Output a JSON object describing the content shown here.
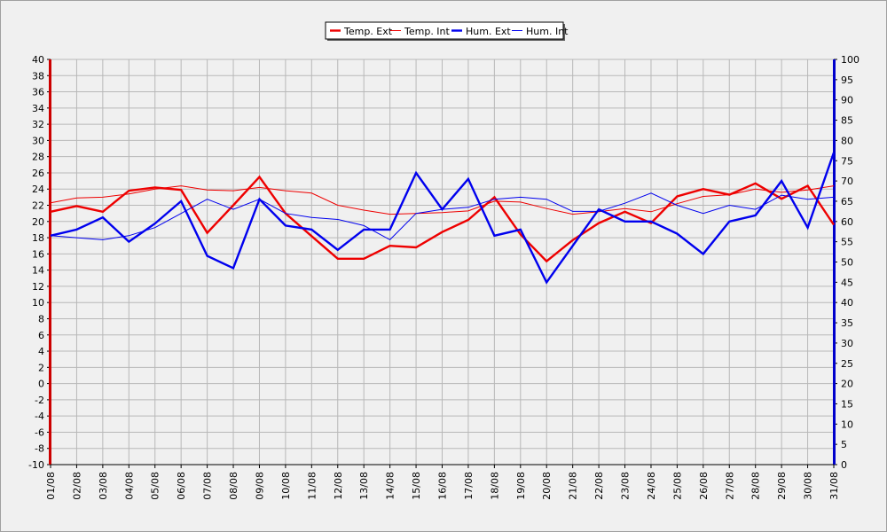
{
  "chart_data": {
    "type": "line",
    "title": "",
    "x": [
      "01/08",
      "02/08",
      "03/08",
      "04/08",
      "05/08",
      "06/08",
      "07/08",
      "08/08",
      "09/08",
      "10/08",
      "11/08",
      "12/08",
      "13/08",
      "14/08",
      "15/08",
      "16/08",
      "17/08",
      "18/08",
      "19/08",
      "20/08",
      "21/08",
      "22/08",
      "23/08",
      "24/08",
      "25/08",
      "26/08",
      "27/08",
      "28/08",
      "29/08",
      "30/08",
      "31/08"
    ],
    "y_left": {
      "range": [
        -10,
        40
      ],
      "step": 2,
      "color": "#cc0000"
    },
    "y_right": {
      "range": [
        0,
        100
      ],
      "step": 5,
      "color": "#0000cc"
    },
    "grid": true,
    "legend_position": "top-center",
    "series": [
      {
        "name": "Temp. Ext",
        "axis": "left",
        "color": "#ee0000",
        "width": 2.4,
        "values": [
          21.2,
          21.9,
          21.2,
          23.8,
          24.2,
          23.9,
          18.6,
          22.0,
          25.5,
          21.0,
          18.2,
          15.4,
          15.4,
          17.0,
          16.8,
          18.7,
          20.2,
          23.0,
          18.4,
          15.1,
          17.7,
          19.8,
          21.2,
          19.8,
          23.1,
          24.0,
          23.3,
          24.7,
          22.8,
          24.4,
          19.6
        ]
      },
      {
        "name": "Temp. Int",
        "axis": "left",
        "color": "#ee0000",
        "width": 1,
        "values": [
          22.3,
          22.9,
          23.0,
          23.4,
          24.0,
          24.4,
          23.9,
          23.8,
          24.2,
          23.8,
          23.5,
          22.0,
          21.4,
          20.9,
          21.0,
          21.1,
          21.3,
          22.5,
          22.4,
          21.6,
          20.9,
          21.2,
          21.6,
          21.2,
          22.2,
          23.1,
          23.3,
          24.0,
          23.6,
          23.9,
          24.4
        ]
      },
      {
        "name": "Hum. Ext",
        "axis": "right",
        "color": "#0000ee",
        "width": 2.4,
        "values": [
          56.5,
          58.0,
          61.0,
          55.0,
          59.5,
          65.0,
          51.5,
          48.5,
          65.5,
          59.0,
          58.0,
          53.0,
          58.0,
          58.0,
          72.0,
          63.0,
          70.5,
          56.5,
          58.0,
          45.0,
          54.0,
          63.0,
          60.0,
          60.0,
          57.0,
          52.0,
          60.0,
          61.5,
          70.0,
          58.5,
          77.0
        ]
      },
      {
        "name": "Hum. Int",
        "axis": "right",
        "color": "#0000ee",
        "width": 1,
        "values": [
          56.5,
          56.0,
          55.5,
          56.5,
          58.5,
          62.0,
          65.5,
          63.0,
          65.5,
          62.0,
          61.0,
          60.5,
          59.0,
          55.5,
          62.0,
          63.0,
          63.5,
          65.5,
          66.0,
          65.5,
          62.5,
          62.5,
          64.5,
          67.0,
          64.0,
          62.0,
          64.0,
          63.0,
          66.5,
          65.5,
          66.0
        ]
      }
    ]
  }
}
